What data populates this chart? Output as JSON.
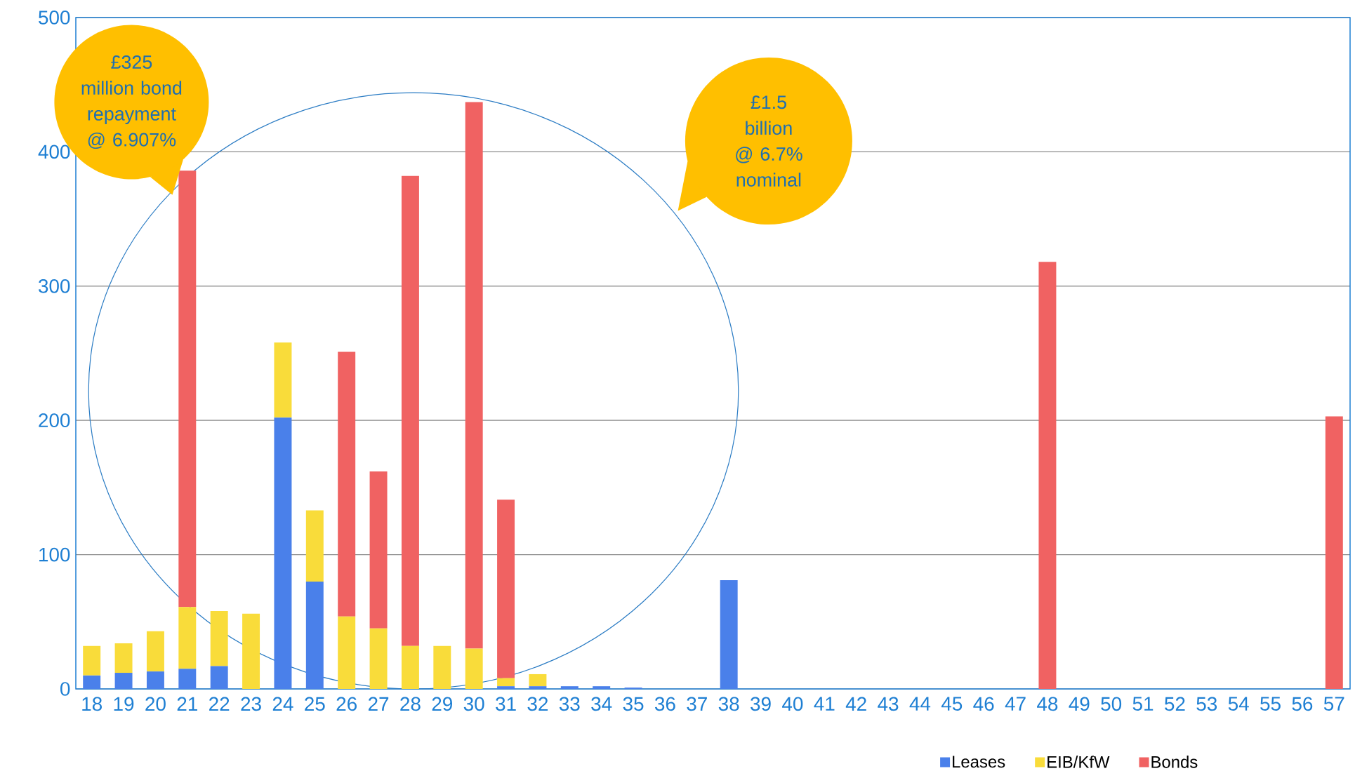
{
  "chart_data": {
    "type": "bar",
    "stacked": true,
    "categories": [
      "18",
      "19",
      "20",
      "21",
      "22",
      "23",
      "24",
      "25",
      "26",
      "27",
      "28",
      "29",
      "30",
      "31",
      "32",
      "33",
      "34",
      "35",
      "36",
      "37",
      "38",
      "39",
      "40",
      "41",
      "42",
      "43",
      "44",
      "45",
      "46",
      "47",
      "48",
      "49",
      "50",
      "51",
      "52",
      "53",
      "54",
      "55",
      "56",
      "57"
    ],
    "series": [
      {
        "name": "Leases",
        "color": "#4a80ea",
        "values": [
          10,
          12,
          13,
          15,
          17,
          null,
          202,
          80,
          null,
          null,
          null,
          null,
          null,
          2,
          2,
          2,
          2,
          1,
          null,
          null,
          81,
          null,
          null,
          null,
          null,
          null,
          null,
          null,
          null,
          null,
          null,
          null,
          null,
          null,
          null,
          null,
          null,
          null,
          null,
          null
        ]
      },
      {
        "name": "EIB/KfW",
        "color": "#f9dc3a",
        "values": [
          22,
          22,
          30,
          46,
          41,
          56,
          56,
          53,
          54,
          45,
          32,
          32,
          30,
          6,
          9,
          null,
          null,
          null,
          null,
          null,
          null,
          null,
          null,
          null,
          null,
          null,
          null,
          null,
          null,
          null,
          null,
          null,
          null,
          null,
          null,
          null,
          null,
          null,
          null,
          null
        ]
      },
      {
        "name": "Bonds",
        "color": "#f06262",
        "values": [
          null,
          null,
          null,
          325,
          null,
          null,
          null,
          null,
          197,
          117,
          350,
          null,
          407,
          133,
          null,
          null,
          null,
          null,
          null,
          null,
          null,
          null,
          null,
          null,
          null,
          null,
          null,
          null,
          null,
          null,
          318,
          null,
          null,
          null,
          null,
          null,
          null,
          null,
          null,
          203
        ]
      }
    ],
    "ylim": [
      0,
      500
    ],
    "yticks": [
      0,
      100,
      200,
      300,
      400,
      500
    ],
    "grid": "y",
    "legend": "bottom",
    "annotations": [
      "£325 million bond repayment @ 6.907%",
      "£1.5 billion @ 6.7% nominal"
    ]
  }
}
